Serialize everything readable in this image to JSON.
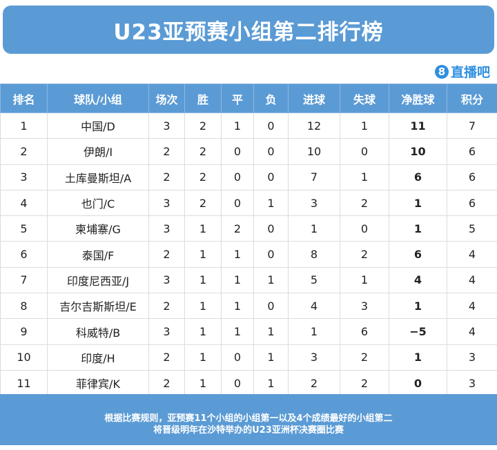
{
  "title": "U23亚预赛小组第二排行榜",
  "logo": {
    "mark": "8",
    "text": "直播吧"
  },
  "headers": [
    "排名",
    "球队/小组",
    "场次",
    "胜",
    "平",
    "负",
    "进球",
    "失球",
    "净胜球",
    "积分"
  ],
  "rows": [
    [
      "1",
      "中国/D",
      "3",
      "2",
      "1",
      "0",
      "12",
      "1",
      "11",
      "7"
    ],
    [
      "2",
      "伊朗/I",
      "2",
      "2",
      "0",
      "0",
      "10",
      "0",
      "10",
      "6"
    ],
    [
      "3",
      "土库曼斯坦/A",
      "2",
      "2",
      "0",
      "0",
      "7",
      "1",
      "6",
      "6"
    ],
    [
      "4",
      "也门/C",
      "3",
      "2",
      "0",
      "1",
      "3",
      "2",
      "1",
      "6"
    ],
    [
      "5",
      "柬埔寨/G",
      "3",
      "1",
      "2",
      "0",
      "1",
      "0",
      "1",
      "5"
    ],
    [
      "6",
      "泰国/F",
      "2",
      "1",
      "1",
      "0",
      "8",
      "2",
      "6",
      "4"
    ],
    [
      "7",
      "印度尼西亚/J",
      "3",
      "1",
      "1",
      "1",
      "5",
      "1",
      "4",
      "4"
    ],
    [
      "8",
      "吉尔吉斯斯坦/E",
      "2",
      "1",
      "1",
      "0",
      "4",
      "3",
      "1",
      "4"
    ],
    [
      "9",
      "科威特/B",
      "3",
      "1",
      "1",
      "1",
      "1",
      "6",
      "−5",
      "4"
    ],
    [
      "10",
      "印度/H",
      "2",
      "1",
      "0",
      "1",
      "3",
      "2",
      "1",
      "3"
    ],
    [
      "11",
      "菲律宾/K",
      "2",
      "1",
      "0",
      "1",
      "2",
      "2",
      "0",
      "3"
    ]
  ],
  "footer": [
    "根据比赛规则，亚预赛11个小组的小组第一以及4个成绩最好的小组第二",
    "将晋级明年在沙特举办的U23亚洲杯决赛圈比赛"
  ],
  "colors": {
    "header_bg": "#5b9bd5",
    "logo": "#2f8fe0"
  }
}
